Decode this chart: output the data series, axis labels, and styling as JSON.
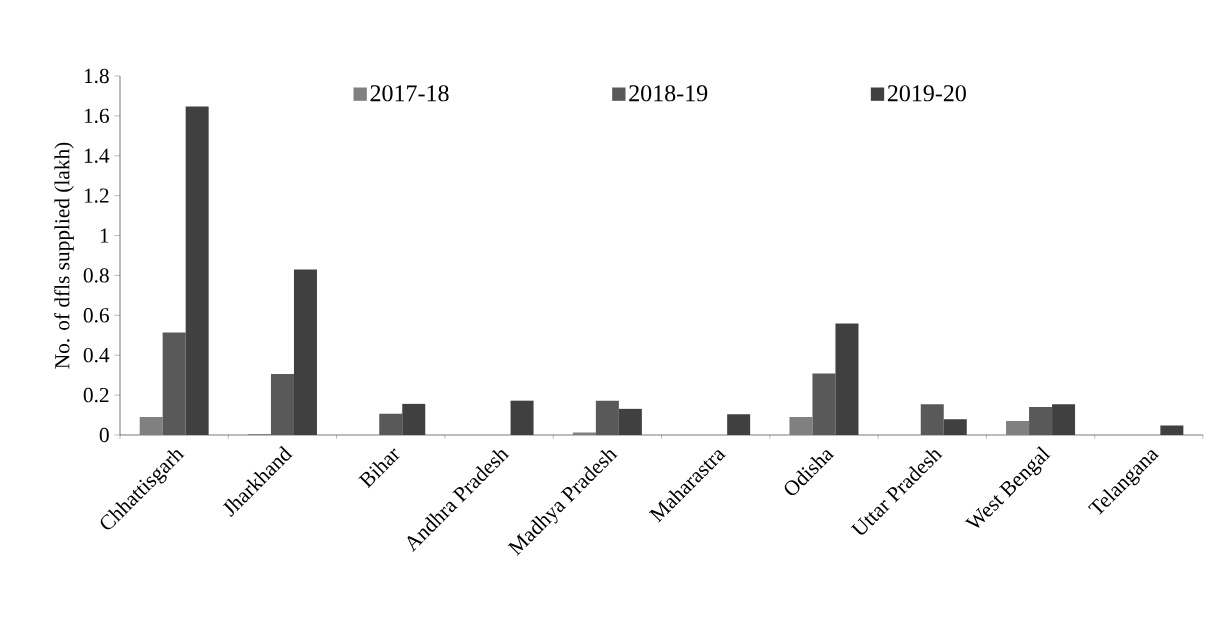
{
  "chart_data": {
    "type": "bar",
    "ylabel": "No. of dfls supplied (lakh)",
    "categories": [
      "Chhattisgarh",
      "Jharkhand",
      "Bihar",
      "Andhra Pradesh",
      "Madhya Pradesh",
      "Maharastra",
      "Odisha",
      "Uttar Pradesh",
      "West Bengal",
      "Telangana"
    ],
    "series": [
      {
        "name": "2017-18",
        "color": "#808080",
        "values": [
          0.09,
          0.005,
          null,
          null,
          0.013,
          null,
          0.09,
          null,
          0.07,
          null
        ]
      },
      {
        "name": "2018-19",
        "color": "#595959",
        "values": [
          0.514,
          0.306,
          0.106,
          null,
          0.172,
          null,
          0.308,
          0.154,
          0.14,
          null
        ]
      },
      {
        "name": "2019-20",
        "color": "#404040",
        "values": [
          1.647,
          0.83,
          0.156,
          0.172,
          0.131,
          0.104,
          0.559,
          0.079,
          0.154,
          0.048
        ]
      }
    ],
    "ylim": [
      0,
      1.8
    ],
    "yticks": [
      0,
      0.2,
      0.4,
      0.6,
      0.8,
      1,
      1.2,
      1.4,
      1.6,
      1.8
    ],
    "grid": false,
    "legend": "top"
  }
}
